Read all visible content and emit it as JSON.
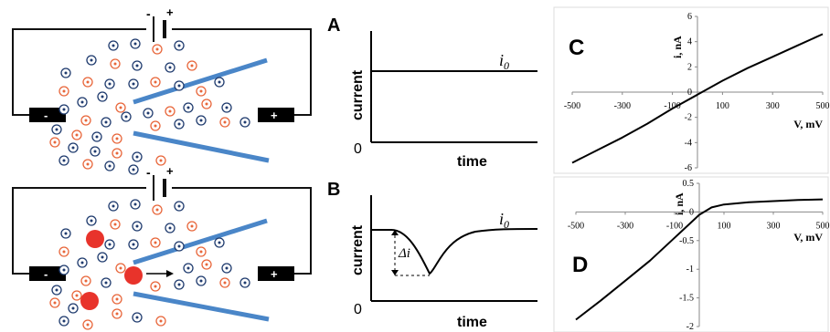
{
  "panel_labels": {
    "A": "A",
    "B": "B",
    "C": "C",
    "D": "D"
  },
  "battery": {
    "minus": "-",
    "plus": "+"
  },
  "electrodes": {
    "minus": "-",
    "plus": "+"
  },
  "plot_A": {
    "ylabel": "current",
    "xlabel": "time",
    "origin": "0",
    "trace_label": "i0"
  },
  "plot_B": {
    "ylabel": "current",
    "xlabel": "time",
    "origin": "0",
    "trace_label": "i0",
    "delta_label": "Δi"
  },
  "colors": {
    "pore": "#4a86c8",
    "anion": "#1f3b6e",
    "cation": "#e8663a",
    "particle": "#e8332b"
  },
  "icons": [
    "battery-icon",
    "anion-icon",
    "cation-icon",
    "particle-icon",
    "arrow-icon"
  ],
  "chart_data": [
    {
      "type": "line",
      "panel": "C",
      "xlabel": "V, mV",
      "ylabel": "i, nA",
      "xlim": [
        -500,
        500
      ],
      "ylim": [
        -6,
        6
      ],
      "x_ticks": [
        "-500",
        "-300",
        "-100",
        "100",
        "300",
        "500"
      ],
      "y_ticks": [
        "6",
        "4",
        "2",
        "0",
        "-2",
        "-4",
        "-6"
      ],
      "series": [
        {
          "x": [
            -500,
            -400,
            -300,
            -200,
            -100,
            0,
            100,
            200,
            300,
            400,
            500
          ],
          "y": [
            -5.6,
            -4.6,
            -3.6,
            -2.5,
            -1.3,
            -0.2,
            0.9,
            1.9,
            2.8,
            3.7,
            4.6
          ]
        }
      ]
    },
    {
      "type": "line",
      "panel": "D",
      "xlabel": "V, mV",
      "ylabel": "i, nA",
      "xlim": [
        -500,
        500
      ],
      "ylim": [
        -2,
        0.5
      ],
      "x_ticks": [
        "-500",
        "-300",
        "-100",
        "100",
        "300",
        "500"
      ],
      "y_ticks": [
        "0.5",
        "0",
        "-0.5",
        "-1",
        "-1.5",
        "-2"
      ],
      "series": [
        {
          "x": [
            -500,
            -400,
            -300,
            -200,
            -100,
            0,
            50,
            100,
            200,
            300,
            400,
            500
          ],
          "y": [
            -1.88,
            -1.55,
            -1.2,
            -0.85,
            -0.45,
            -0.05,
            0.08,
            0.13,
            0.17,
            0.19,
            0.21,
            0.22
          ]
        }
      ]
    }
  ]
}
